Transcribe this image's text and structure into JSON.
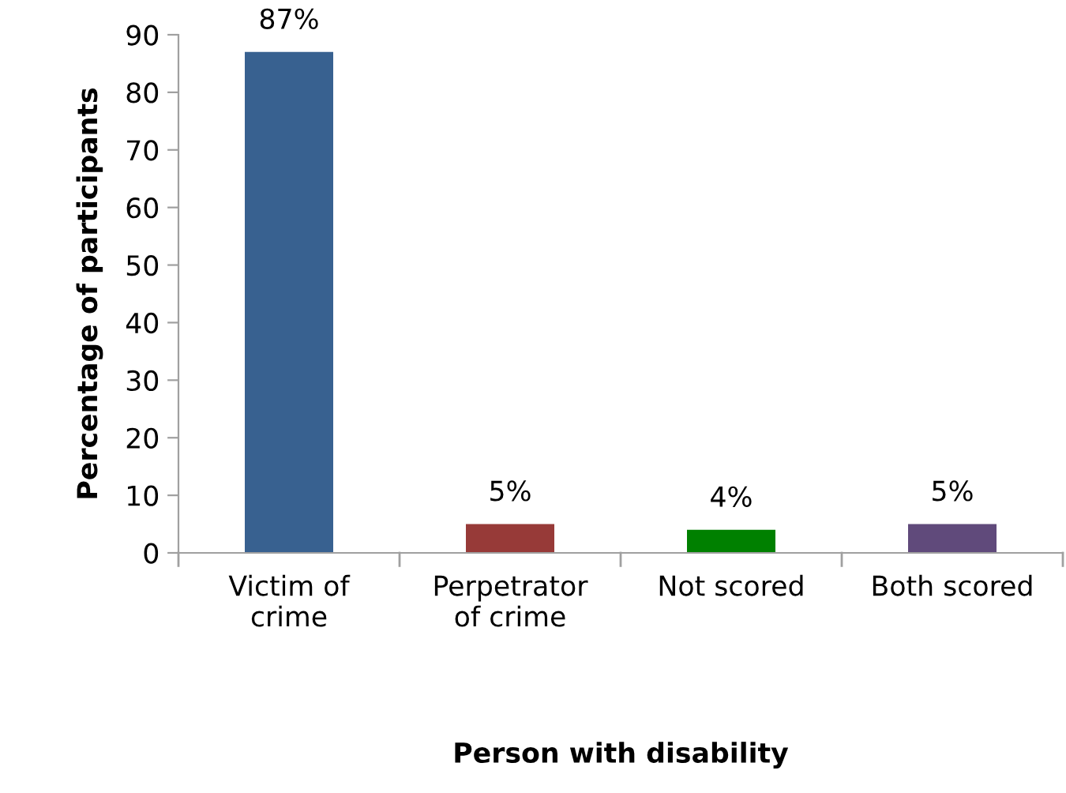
{
  "chart_data": {
    "type": "bar",
    "xlabel": "Person with disability",
    "ylabel": "Percentage of participants",
    "categories": [
      "Victim of\ncrime",
      "Perpetrator\nof crime",
      "Not scored",
      "Both scored"
    ],
    "values": [
      87,
      5,
      4,
      5
    ],
    "value_labels": [
      "87%",
      "5%",
      "4%",
      "5%"
    ],
    "colors": [
      "#386190",
      "#973a38",
      "#008000",
      "#604a7b"
    ],
    "ylim": [
      0,
      90
    ],
    "yticks": [
      0,
      10,
      20,
      30,
      40,
      50,
      60,
      70,
      80,
      90
    ],
    "grid": false,
    "legend": false
  }
}
